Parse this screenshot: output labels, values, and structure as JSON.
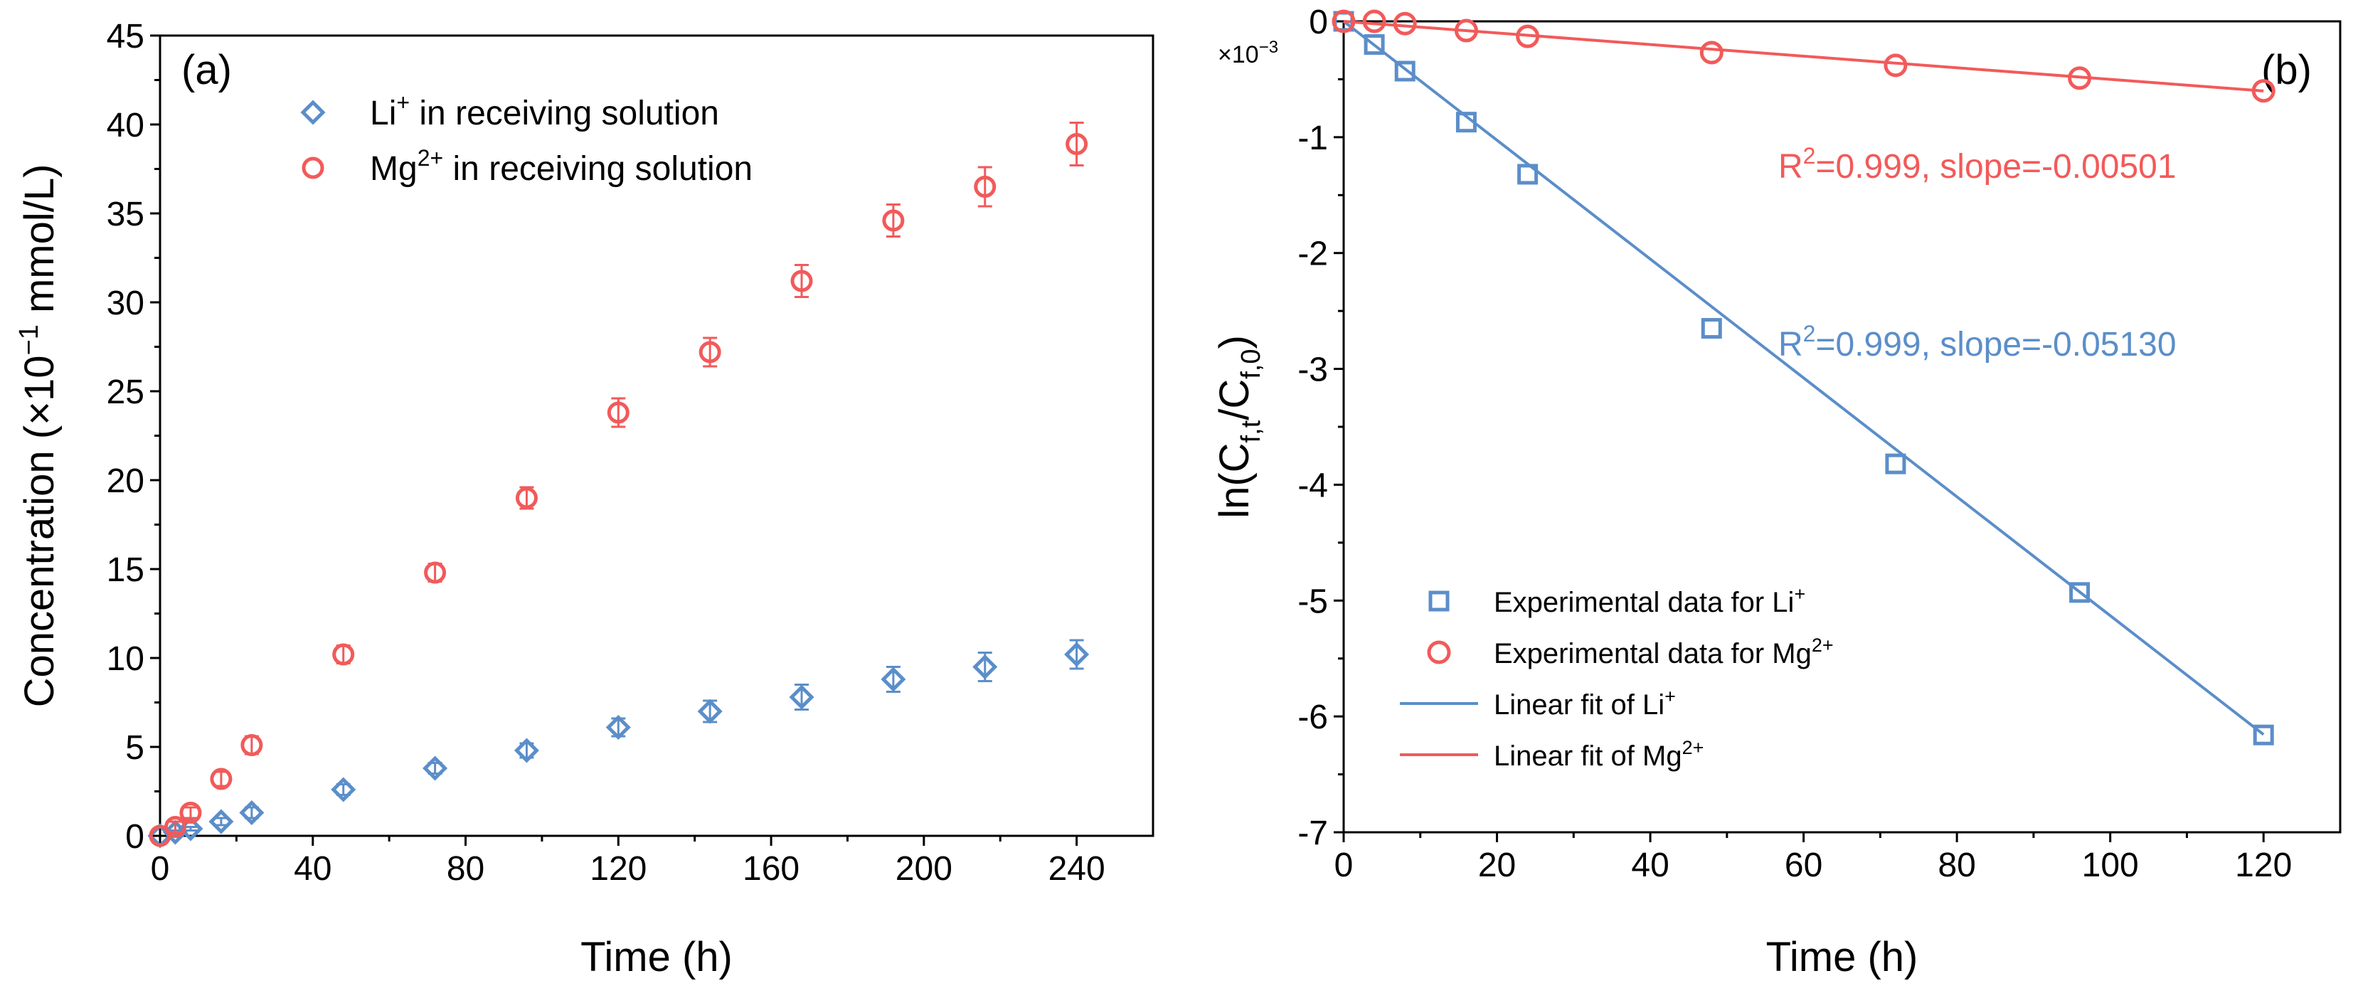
{
  "colors": {
    "li": "#5b8ec9",
    "mg": "#f25a5a",
    "axis": "#000000"
  },
  "chart_data": [
    {
      "type": "scatter",
      "panel_label": "(a)",
      "xlabel": "Time (h)",
      "ylabel": "Concentration (×10−1 mmol/L)",
      "ylabel_parts": {
        "prefix": "Concentration (×10",
        "sup": "−1",
        "suffix": " mmol/L)"
      },
      "xlim": [
        0,
        260
      ],
      "ylim": [
        0,
        45
      ],
      "xticks": [
        0,
        40,
        80,
        120,
        160,
        200,
        240
      ],
      "yticks": [
        0,
        5,
        10,
        15,
        20,
        25,
        30,
        35,
        40,
        45
      ],
      "legend": {
        "position": "top-center",
        "entries": [
          {
            "key": "li",
            "marker": "diamond",
            "base": "Li",
            "sup": "+",
            "rest": " in receiving solution"
          },
          {
            "key": "mg",
            "marker": "circle",
            "base": "Mg",
            "sup": "2+",
            "rest": " in receiving solution"
          }
        ]
      },
      "series": [
        {
          "name": "Li+ in receiving solution",
          "key": "li",
          "marker": "diamond",
          "x": [
            0,
            4,
            8,
            16,
            24,
            48,
            72,
            96,
            120,
            144,
            168,
            192,
            216,
            240
          ],
          "y": [
            0,
            0.2,
            0.4,
            0.8,
            1.3,
            2.6,
            3.8,
            4.8,
            6.1,
            7.0,
            7.8,
            8.8,
            9.5,
            10.2
          ],
          "err": [
            0,
            0.1,
            0.1,
            0.2,
            0.3,
            0.3,
            0.3,
            0.4,
            0.5,
            0.6,
            0.7,
            0.7,
            0.8,
            0.8
          ]
        },
        {
          "name": "Mg2+ in receiving solution",
          "key": "mg",
          "marker": "circle",
          "x": [
            0,
            4,
            8,
            16,
            24,
            48,
            72,
            96,
            120,
            144,
            168,
            192,
            216,
            240
          ],
          "y": [
            0,
            0.5,
            1.3,
            3.2,
            5.1,
            10.2,
            14.8,
            19.0,
            23.8,
            27.2,
            31.2,
            34.6,
            36.5,
            38.9
          ],
          "err": [
            0,
            0.3,
            0.3,
            0.4,
            0.5,
            0.5,
            0.5,
            0.6,
            0.8,
            0.8,
            0.9,
            0.9,
            1.1,
            1.2
          ]
        }
      ]
    },
    {
      "type": "scatter",
      "panel_label": "(b)",
      "xlabel": "Time (h)",
      "ylabel": "ln(Cf,t/Cf,0)",
      "ylabel_parts": {
        "a": "ln(C",
        "s1": "f,t",
        "b": "/C",
        "s2": "f,0",
        "c": ")"
      },
      "multiplier": "×10−3",
      "multiplier_parts": {
        "base": "×10",
        "sup": "−3"
      },
      "xlim": [
        0,
        130
      ],
      "ylim": [
        -7,
        0
      ],
      "xticks": [
        0,
        20,
        40,
        60,
        80,
        100,
        120
      ],
      "yticks": [
        0,
        -1,
        -2,
        -3,
        -4,
        -5,
        -6,
        -7
      ],
      "legend": {
        "position": "bottom-left",
        "entries": [
          {
            "key": "li",
            "marker": "square",
            "base": "Experimental data for Li",
            "sup": "+"
          },
          {
            "key": "mg",
            "marker": "circle",
            "base": "Experimental data for Mg",
            "sup": "2+"
          },
          {
            "key": "li",
            "marker": "line",
            "base": "Linear fit of Li",
            "sup": "+"
          },
          {
            "key": "mg",
            "marker": "line",
            "base": "Linear fit of Mg",
            "sup": "2+"
          }
        ]
      },
      "annotations": [
        {
          "key": "mg",
          "text": "R2=0.999, slope=-0.00501",
          "r": "R",
          "sup": "2",
          "rest": "=0.999, slope=-0.00501"
        },
        {
          "key": "li",
          "text": "R2=0.999, slope=-0.05130",
          "r": "R",
          "sup": "2",
          "rest": "=0.999, slope=-0.05130"
        }
      ],
      "series": [
        {
          "name": "Experimental data for Li+",
          "key": "li",
          "marker": "square",
          "x": [
            0,
            4,
            8,
            16,
            24,
            48,
            72,
            96,
            120
          ],
          "y": [
            0,
            -0.2,
            -0.43,
            -0.87,
            -1.32,
            -2.65,
            -3.82,
            -4.93,
            -6.16
          ]
        },
        {
          "name": "Experimental data for Mg2+",
          "key": "mg",
          "marker": "circle",
          "x": [
            0,
            4,
            8,
            16,
            24,
            48,
            72,
            96,
            120
          ],
          "y": [
            0,
            0,
            -0.02,
            -0.08,
            -0.13,
            -0.27,
            -0.38,
            -0.49,
            -0.6
          ]
        },
        {
          "name": "Linear fit of Li+",
          "key": "li",
          "marker": "line",
          "x": [
            0,
            120
          ],
          "y": [
            0,
            -6.156
          ]
        },
        {
          "name": "Linear fit of Mg2+",
          "key": "mg",
          "marker": "line",
          "x": [
            0,
            120
          ],
          "y": [
            0,
            -0.601
          ]
        }
      ]
    }
  ]
}
